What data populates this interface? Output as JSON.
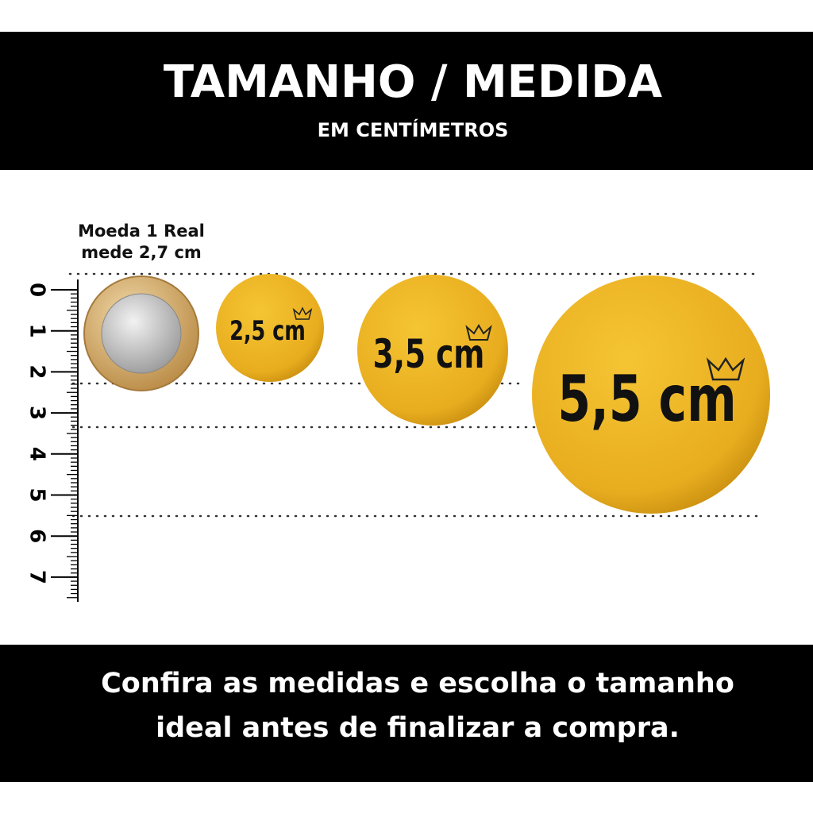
{
  "header": {
    "title": "TAMANHO / MEDIDA",
    "subtitle": "EM CENTÍMETROS"
  },
  "coin": {
    "label_lines": [
      "Moeda 1 Real",
      "mede 2,7 cm"
    ]
  },
  "ruler": {
    "labels": [
      "0",
      "1",
      "2",
      "3",
      "4",
      "5",
      "6",
      "7"
    ]
  },
  "buttons": [
    {
      "label": "2,5 cm"
    },
    {
      "label": "3,5 cm"
    },
    {
      "label": "5,5 cm"
    }
  ],
  "footer": {
    "lines": [
      "Confira as medidas e escolha o tamanho",
      "ideal antes de finalizar a compra."
    ]
  }
}
